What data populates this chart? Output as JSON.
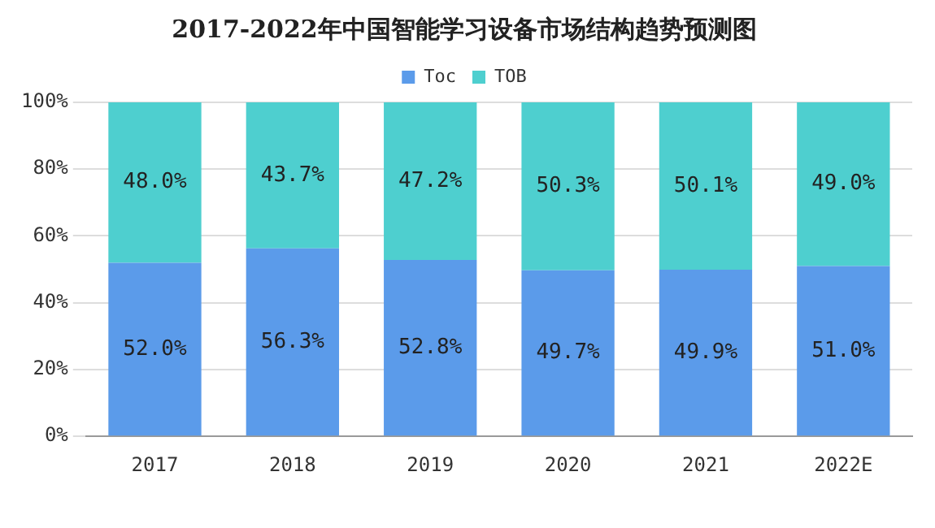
{
  "chart_data": {
    "type": "bar",
    "title": "2017-2022年中国智能学习设备市场结构趋势预测图",
    "categories": [
      "2017",
      "2018",
      "2019",
      "2020",
      "2021",
      "2022E"
    ],
    "stacked": true,
    "ylim": [
      0,
      100
    ],
    "yticks": [
      {
        "value": 0,
        "label": "0%"
      },
      {
        "value": 20,
        "label": "20%"
      },
      {
        "value": 40,
        "label": "40%"
      },
      {
        "value": 60,
        "label": "60%"
      },
      {
        "value": 80,
        "label": "80%"
      },
      {
        "value": 100,
        "label": "100%"
      }
    ],
    "grid": "y",
    "legend": "top",
    "series": [
      {
        "name": "Toc",
        "color": "#5b9bea",
        "values": [
          52.0,
          56.3,
          52.8,
          49.7,
          49.9,
          51.0
        ],
        "value_labels": [
          "52.0%",
          "56.3%",
          "52.8%",
          "49.7%",
          "49.9%",
          "51.0%"
        ]
      },
      {
        "name": "TOB",
        "color": "#4ecfcf",
        "values": [
          48.0,
          43.7,
          47.2,
          50.3,
          50.1,
          49.0
        ],
        "value_labels": [
          "48.0%",
          "43.7%",
          "47.2%",
          "50.3%",
          "50.1%",
          "49.0%"
        ]
      }
    ]
  }
}
